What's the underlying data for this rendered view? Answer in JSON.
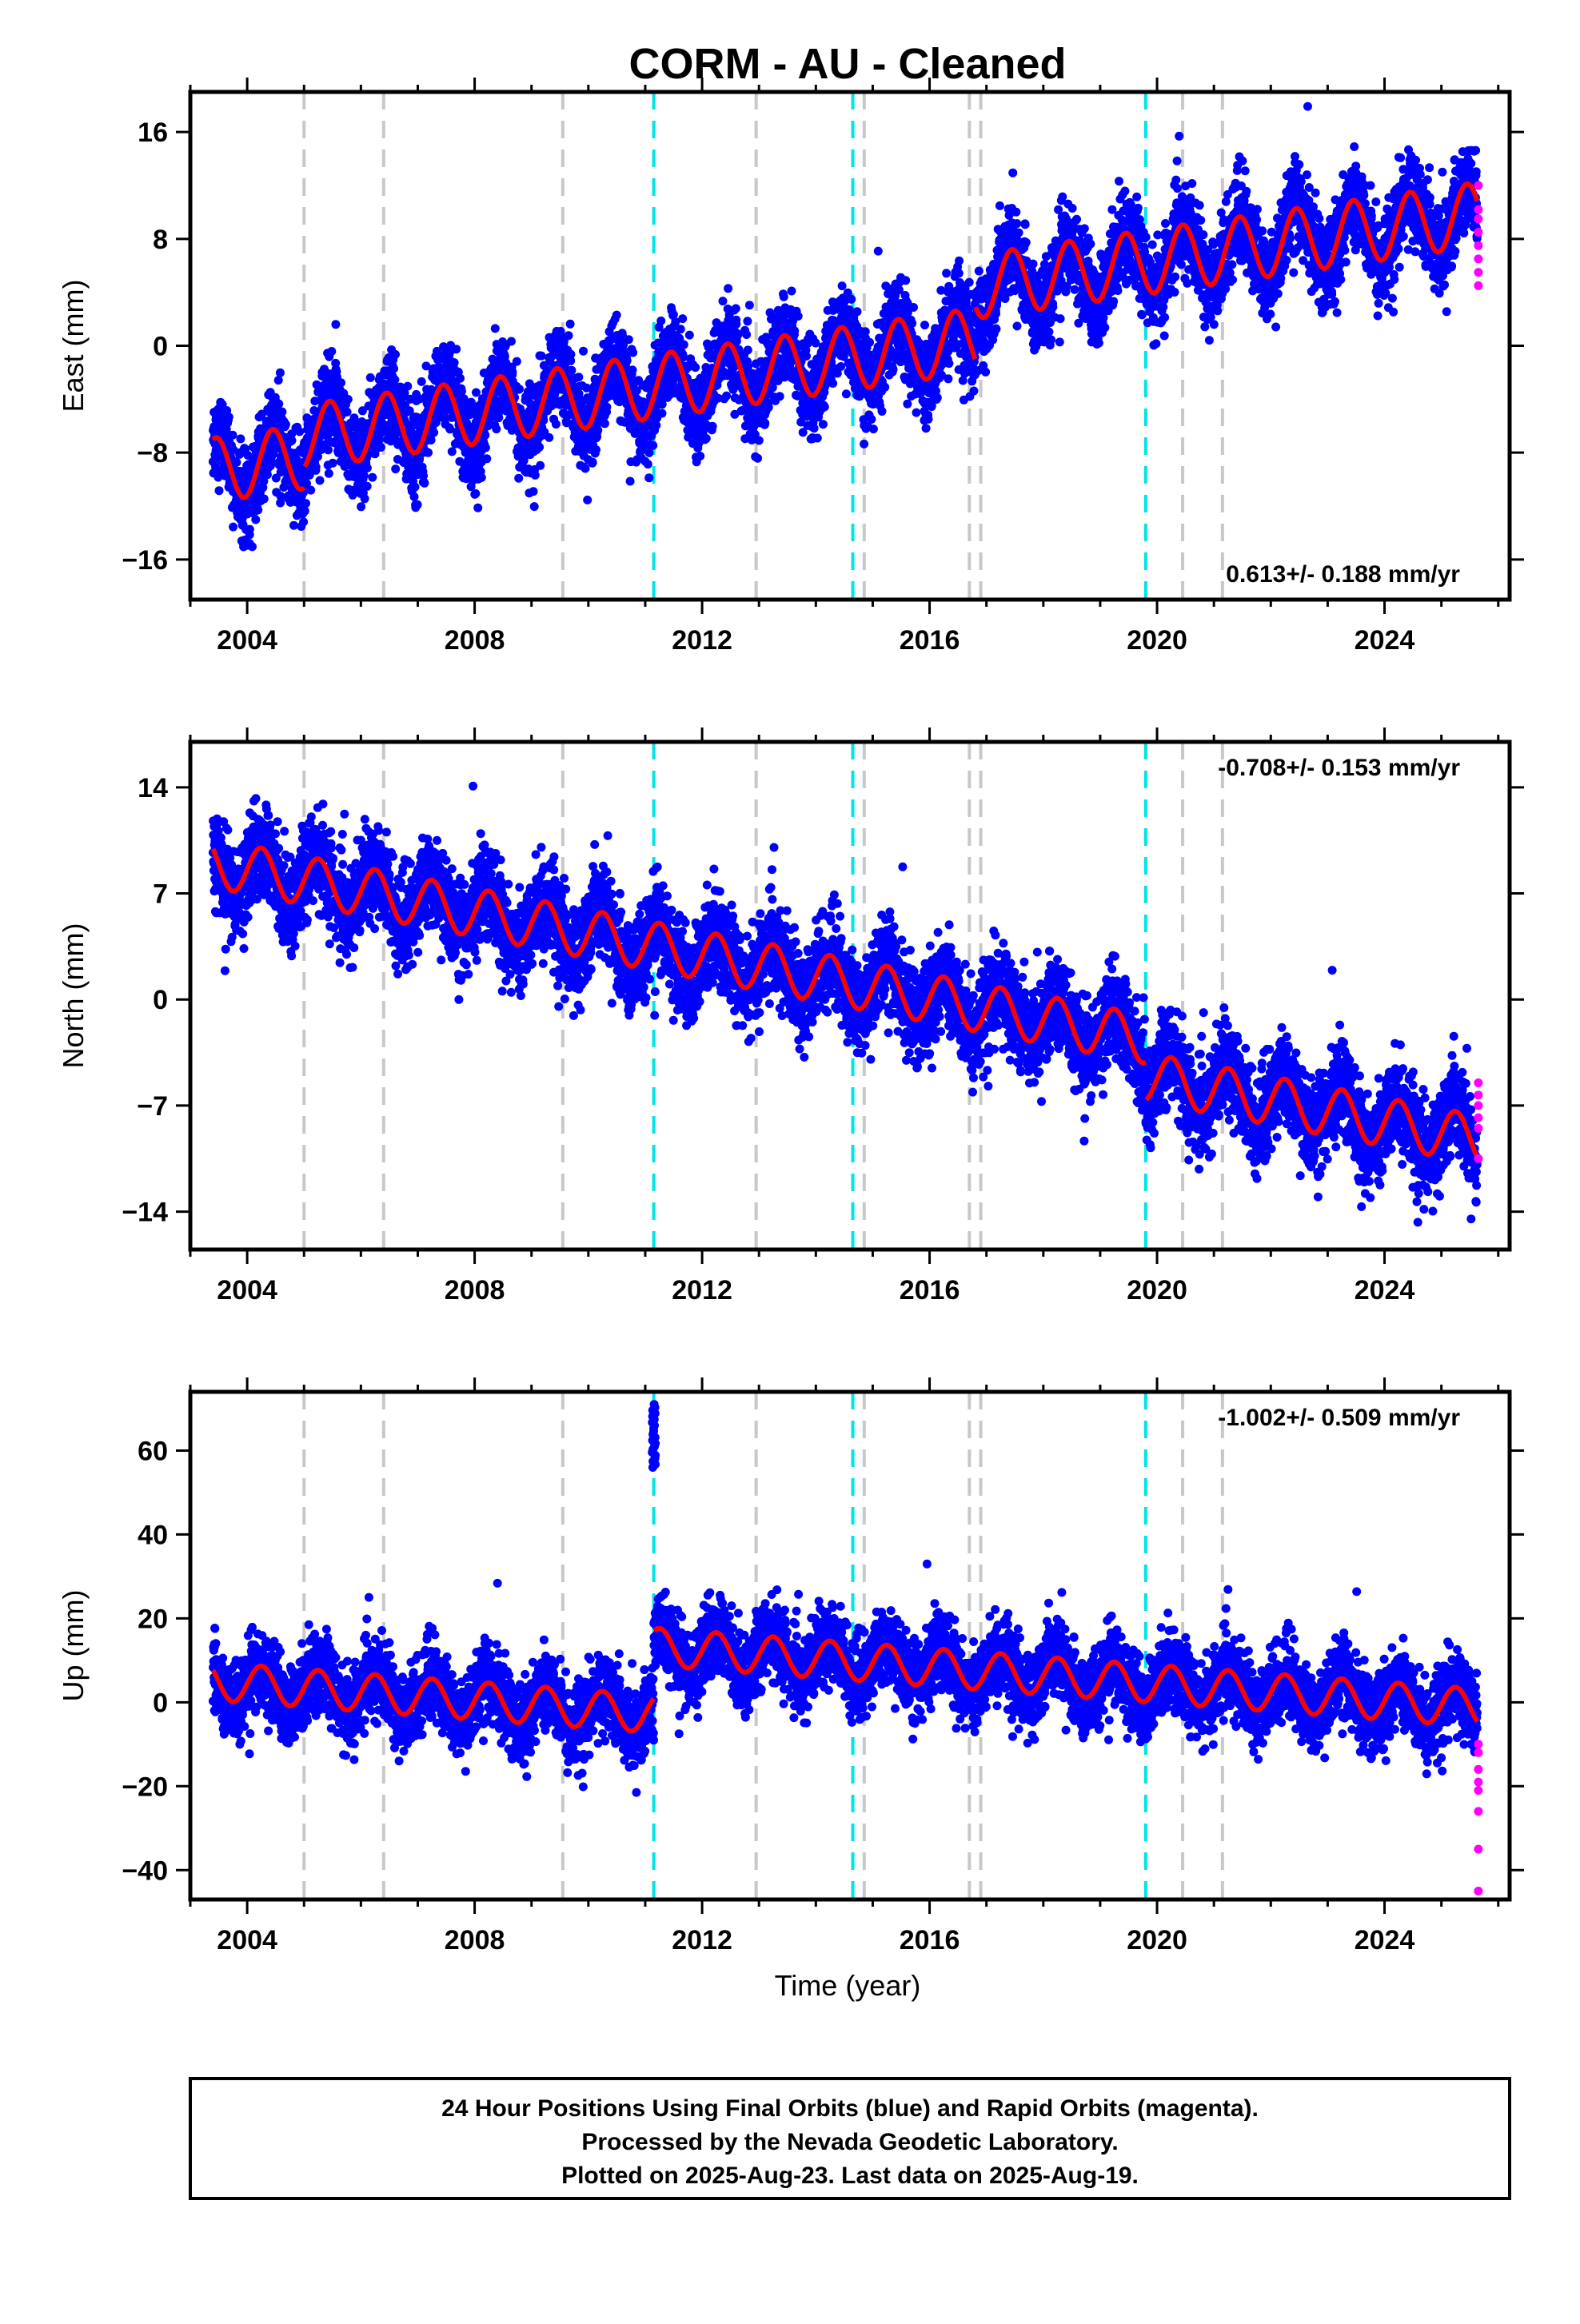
{
  "chart_data": {
    "type": "scatter",
    "title": "CORM  - AU - Cleaned",
    "xlabel": "Time (year)",
    "xlim": [
      2003.0,
      2026.2
    ],
    "x_ticks": [
      2004,
      2008,
      2012,
      2016,
      2020,
      2024
    ],
    "x_tick_labels": [
      "2004",
      "2008",
      "2012",
      "2016",
      "2020",
      "2024"
    ],
    "start_year": 2003.4,
    "end_year": 2025.63,
    "equipment_change_lines": [
      2005.0,
      2006.4,
      2009.55,
      2012.95,
      2014.85,
      2016.7,
      2016.9,
      2020.45,
      2021.15
    ],
    "earthquake_lines": [
      2011.15,
      2014.65,
      2019.8
    ],
    "colors": {
      "final_orbits": "#0000ff",
      "rapid_orbits": "#ff00ff",
      "model": "#ff0000",
      "equipment_change": "#c8c8c8",
      "earthquake": "#00e5e5"
    },
    "panels": [
      {
        "name": "East",
        "ylabel": "East (mm)",
        "ylim": [
          -19,
          19
        ],
        "y_ticks": [
          -16,
          -8,
          0,
          8,
          16
        ],
        "y_tick_labels": [
          "−16",
          "−8",
          "0",
          "8",
          "16"
        ],
        "rate_text": "0.613+/- 0.188 mm/yr",
        "rate_position": "bottom-right",
        "model": {
          "offset": -9.3,
          "trend": 0.613,
          "amp": 2.4,
          "phase": 0.2,
          "noise": 1.6,
          "steps": [
            [
              2005.0,
              1.5
            ],
            [
              2016.8,
              4.0
            ]
          ]
        },
        "rapid_values": [
          12.0,
          10.2,
          9.5,
          8.5,
          7.5,
          6.5,
          5.5,
          4.5
        ]
      },
      {
        "name": "North",
        "ylabel": "North (mm)",
        "ylim": [
          -16.5,
          17
        ],
        "y_ticks": [
          -14,
          -7,
          0,
          7,
          14
        ],
        "y_tick_labels": [
          "−14",
          "−7",
          "0",
          "7",
          "14"
        ],
        "rate_text": "-0.708+/- 0.153 mm/yr",
        "rate_position": "top-right",
        "model": {
          "offset": 9.0,
          "trend": -0.708,
          "amp": 1.6,
          "phase": 0.0,
          "noise": 1.5,
          "steps": [
            [
              2019.8,
              -2.5
            ]
          ]
        },
        "rapid_values": [
          -5.5,
          -6.3,
          -7.0,
          -7.8,
          -8.5,
          -10.5
        ]
      },
      {
        "name": "Up",
        "ylabel": "Up (mm)",
        "ylim": [
          -47,
          74
        ],
        "y_ticks": [
          -40,
          -20,
          0,
          20,
          40,
          60
        ],
        "y_tick_labels": [
          "−40",
          "−20",
          "0",
          "20",
          "40",
          "60"
        ],
        "rate_text": "-1.002+/- 0.509 mm/yr",
        "rate_position": "top-right",
        "model": {
          "offset": 5.0,
          "trend": -1.002,
          "amp": 4.5,
          "phase": 0.0,
          "noise": 4.5,
          "steps": [
            [
              2011.15,
              16.0
            ]
          ]
        },
        "outlier_cluster": {
          "x": 2011.15,
          "ymin": 56,
          "ymax": 71
        },
        "rapid_values": [
          -10,
          -12,
          -16,
          -19,
          -21,
          -26,
          -35,
          -45
        ]
      }
    ],
    "footer_lines": [
      "24 Hour Positions Using Final Orbits (blue) and Rapid Orbits (magenta).",
      "Processed by the Nevada Geodetic Laboratory.",
      "Plotted on 2025-Aug-23. Last data on 2025-Aug-19."
    ]
  }
}
